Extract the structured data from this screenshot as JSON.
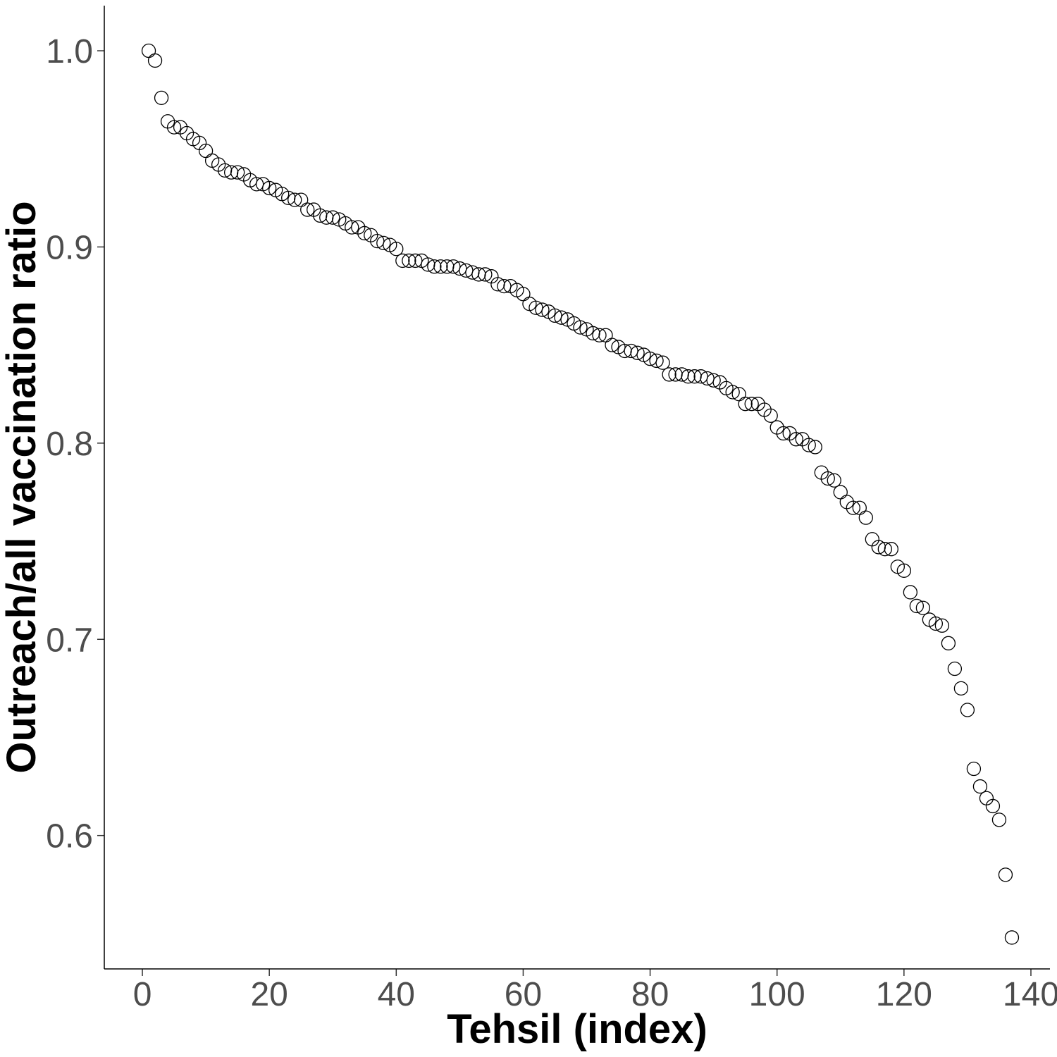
{
  "chart_data": {
    "type": "scatter",
    "xlabel": "Tehsil (index)",
    "ylabel": "Outreach/all vaccination ratio",
    "xlim": [
      -6,
      143
    ],
    "ylim": [
      0.532,
      1.023
    ],
    "xticks": [
      0,
      20,
      40,
      60,
      80,
      100,
      120,
      140
    ],
    "yticks": [
      0.6,
      0.7,
      0.8,
      0.9,
      1.0
    ],
    "ytick_labels": [
      "0.6",
      "0.7",
      "0.8",
      "0.9",
      "1.0"
    ],
    "grid": false,
    "marker": "open-circle",
    "series": [
      {
        "x": [
          1,
          2,
          3,
          4,
          5,
          6,
          7,
          8,
          9,
          10,
          11,
          12,
          13,
          14,
          15,
          16,
          17,
          18,
          19,
          20,
          21,
          22,
          23,
          24,
          25,
          26,
          27,
          28,
          29,
          30,
          31,
          32,
          33,
          34,
          35,
          36,
          37,
          38,
          39,
          40,
          41,
          42,
          43,
          44,
          45,
          46,
          47,
          48,
          49,
          50,
          51,
          52,
          53,
          54,
          55,
          56,
          57,
          58,
          59,
          60,
          61,
          62,
          63,
          64,
          65,
          66,
          67,
          68,
          69,
          70,
          71,
          72,
          73,
          74,
          75,
          76,
          77,
          78,
          79,
          80,
          81,
          82,
          83,
          84,
          85,
          86,
          87,
          88,
          89,
          90,
          91,
          92,
          93,
          94,
          95,
          96,
          97,
          98,
          99,
          100,
          101,
          102,
          103,
          104,
          105,
          106,
          107,
          108,
          109,
          110,
          111,
          112,
          113,
          114,
          115,
          116,
          117,
          118,
          119,
          120,
          121,
          122,
          123,
          124,
          125,
          126,
          127,
          128,
          129,
          130,
          131,
          132,
          133,
          134,
          135,
          136,
          137
        ],
        "y": [
          1.0,
          0.995,
          0.976,
          0.964,
          0.961,
          0.961,
          0.958,
          0.955,
          0.953,
          0.949,
          0.944,
          0.942,
          0.939,
          0.938,
          0.938,
          0.937,
          0.934,
          0.932,
          0.932,
          0.93,
          0.929,
          0.927,
          0.925,
          0.924,
          0.924,
          0.919,
          0.919,
          0.916,
          0.915,
          0.915,
          0.914,
          0.912,
          0.91,
          0.91,
          0.907,
          0.906,
          0.903,
          0.902,
          0.901,
          0.899,
          0.893,
          0.893,
          0.893,
          0.893,
          0.891,
          0.89,
          0.89,
          0.89,
          0.89,
          0.889,
          0.888,
          0.887,
          0.886,
          0.886,
          0.885,
          0.881,
          0.88,
          0.88,
          0.878,
          0.876,
          0.871,
          0.869,
          0.868,
          0.867,
          0.865,
          0.864,
          0.863,
          0.861,
          0.859,
          0.858,
          0.856,
          0.855,
          0.855,
          0.85,
          0.849,
          0.847,
          0.847,
          0.846,
          0.845,
          0.843,
          0.842,
          0.841,
          0.835,
          0.835,
          0.835,
          0.834,
          0.834,
          0.834,
          0.833,
          0.832,
          0.831,
          0.828,
          0.826,
          0.825,
          0.82,
          0.82,
          0.82,
          0.817,
          0.814,
          0.808,
          0.805,
          0.805,
          0.802,
          0.802,
          0.799,
          0.798,
          0.785,
          0.782,
          0.781,
          0.775,
          0.77,
          0.767,
          0.767,
          0.762,
          0.751,
          0.747,
          0.746,
          0.746,
          0.737,
          0.735,
          0.724,
          0.717,
          0.716,
          0.71,
          0.708,
          0.707,
          0.698,
          0.685,
          0.675,
          0.664,
          0.634,
          0.625,
          0.619,
          0.615,
          0.608,
          0.58,
          0.548
        ]
      }
    ]
  }
}
